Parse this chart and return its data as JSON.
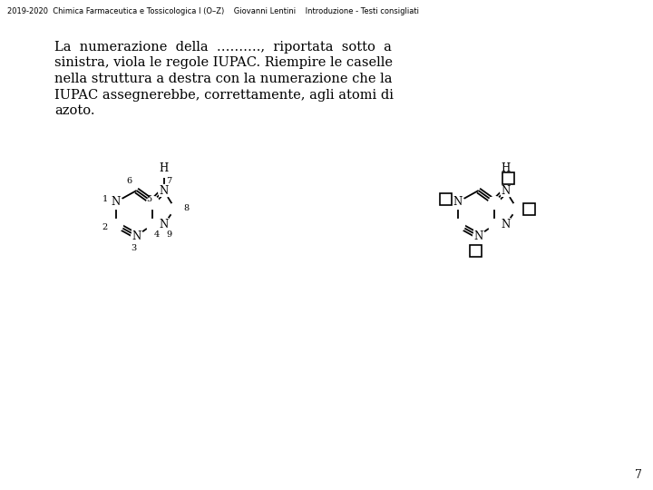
{
  "header": "2019-2020  Chimica Farmaceutica e Tossicologica I (O–Z)    Giovanni Lentini    Introduzione - Testi consigliati",
  "body_lines": [
    "La  numerazione  della  ……….,  riportata  sotto  a",
    "sinistra, viola le regole IUPAC. Riempire le caselle",
    "nella struttura a destra con la numerazione che la",
    "IUPAC assegnerebbe, correttamente, agli atomi di",
    "azoto."
  ],
  "page_number": "7",
  "bg_color": "#ffffff",
  "text_color": "#000000",
  "header_fontsize": 6.0,
  "body_fontsize": 10.5,
  "page_fontsize": 9.0
}
